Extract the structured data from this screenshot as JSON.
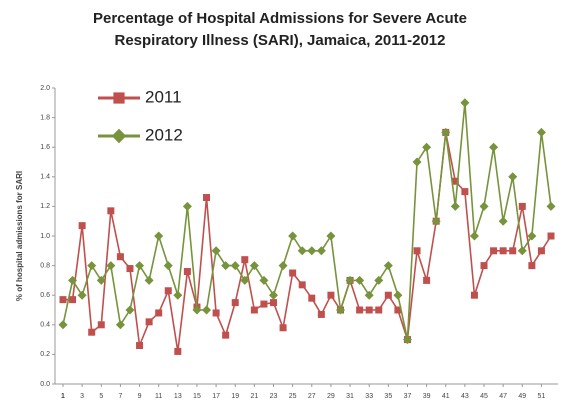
{
  "chart_data": {
    "type": "line",
    "title": "Percentage of Hospital Admissions for Severe Acute Respiratory Illness (SARI), Jamaica, 2011-2012",
    "y_label": "% of hospital admissions for SARI",
    "x": [
      1,
      2,
      3,
      4,
      5,
      6,
      7,
      8,
      9,
      10,
      11,
      12,
      13,
      14,
      15,
      16,
      17,
      18,
      19,
      20,
      21,
      22,
      23,
      24,
      25,
      26,
      27,
      28,
      29,
      30,
      31,
      32,
      33,
      34,
      35,
      36,
      37,
      38,
      39,
      40,
      41,
      42,
      43,
      44,
      45,
      46,
      47,
      48,
      49,
      50,
      51,
      52
    ],
    "series": [
      {
        "name": "2011",
        "color": "#c0504d",
        "marker": "square",
        "values": [
          0.57,
          0.57,
          1.07,
          0.35,
          0.4,
          1.17,
          0.86,
          0.78,
          0.26,
          0.42,
          0.48,
          0.63,
          0.22,
          0.76,
          0.52,
          1.26,
          0.48,
          0.33,
          0.55,
          0.84,
          0.5,
          0.54,
          0.55,
          0.38,
          0.75,
          0.67,
          0.58,
          0.47,
          0.6,
          0.5,
          0.7,
          0.5,
          0.5,
          0.5,
          0.6,
          0.5,
          0.3,
          0.9,
          0.7,
          1.1,
          1.7,
          1.37,
          1.3,
          0.6,
          0.8,
          0.9,
          0.9,
          0.9,
          1.2,
          0.8,
          0.9,
          1.0
        ]
      },
      {
        "name": "2012",
        "color": "#77933c",
        "marker": "diamond",
        "values": [
          0.4,
          0.7,
          0.6,
          0.8,
          0.7,
          0.8,
          0.4,
          0.5,
          0.8,
          0.7,
          1.0,
          0.8,
          0.6,
          1.2,
          0.5,
          0.5,
          0.9,
          0.8,
          0.8,
          0.7,
          0.8,
          0.7,
          0.6,
          0.8,
          1.0,
          0.9,
          0.9,
          0.9,
          1.0,
          0.5,
          0.7,
          0.7,
          0.6,
          0.7,
          0.8,
          0.6,
          0.3,
          1.5,
          1.6,
          1.1,
          1.7,
          1.2,
          1.9,
          1.0,
          1.2,
          1.6,
          1.1,
          1.4,
          0.9,
          1.0,
          1.7,
          1.2
        ]
      }
    ],
    "xlim": [
      1,
      52
    ],
    "xticks": [
      1,
      3,
      5,
      7,
      9,
      11,
      13,
      15,
      17,
      19,
      21,
      23,
      25,
      27,
      29,
      31,
      33,
      35,
      37,
      39,
      41,
      43,
      45,
      47,
      49,
      51
    ],
    "ylim": [
      0,
      2
    ],
    "yticks": [
      {
        "value": 0,
        "label": "0.0"
      },
      0.2,
      0.4,
      0.6,
      0.8,
      {
        "value": 1,
        "label": "1.0"
      },
      1.2,
      1.4,
      1.6,
      1.8,
      {
        "value": 2,
        "label": "2.0"
      }
    ],
    "grid": false,
    "legend": "upper left"
  }
}
